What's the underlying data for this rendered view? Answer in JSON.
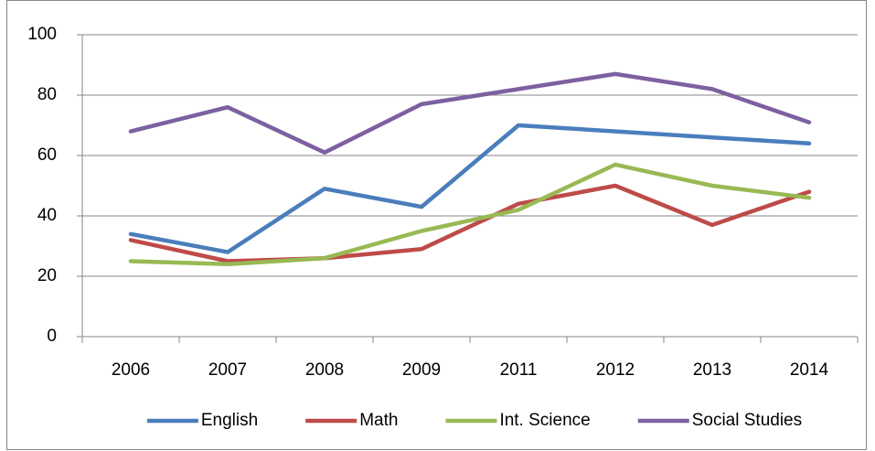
{
  "chart_data": {
    "type": "line",
    "categories": [
      "2006",
      "2007",
      "2008",
      "2009",
      "2011",
      "2012",
      "2013",
      "2014"
    ],
    "series": [
      {
        "name": "English",
        "color": "#4a7ebb",
        "values": [
          34,
          28,
          49,
          43,
          70,
          68,
          66,
          64
        ]
      },
      {
        "name": "Math",
        "color": "#be4b48",
        "values": [
          32,
          25,
          26,
          29,
          44,
          50,
          37,
          48
        ]
      },
      {
        "name": "Int. Science",
        "color": "#98b954",
        "values": [
          25,
          24,
          26,
          35,
          42,
          57,
          50,
          46
        ]
      },
      {
        "name": "Social Studies",
        "color": "#7d60a0",
        "values": [
          68,
          76,
          61,
          77,
          82,
          87,
          82,
          71
        ]
      }
    ],
    "ylim": [
      0,
      100
    ],
    "yticks": [
      0,
      20,
      40,
      60,
      80,
      100
    ],
    "grid": true,
    "legend": "bottom"
  }
}
